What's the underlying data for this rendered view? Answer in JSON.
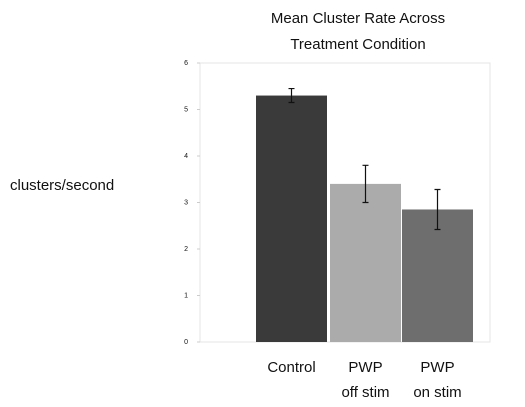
{
  "chart_data": {
    "type": "bar",
    "title": [
      "Mean Cluster Rate Across",
      "Treatment Condition"
    ],
    "y_label": "clusters/second",
    "categories": [
      "Control",
      "PWP off stim",
      "PWP on stim"
    ],
    "values": [
      5.3,
      3.4,
      2.85
    ],
    "errors": [
      0.15,
      0.4,
      0.43
    ],
    "colors": [
      "#3a3a3a",
      "#ababab",
      "#6e6e6e"
    ],
    "ylim": [
      0,
      6
    ],
    "yticks": [
      0,
      1,
      2,
      3,
      4,
      5,
      6
    ]
  }
}
